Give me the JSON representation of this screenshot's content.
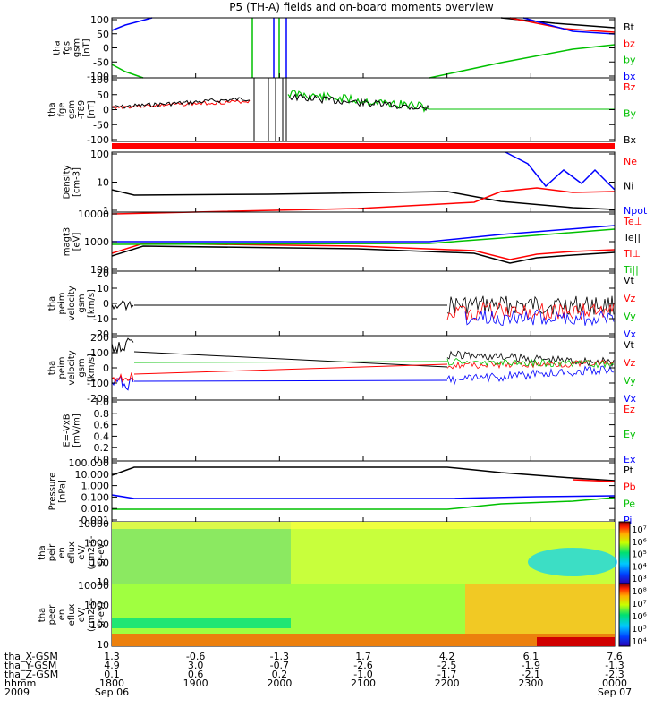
{
  "title": "P5 (TH-A) fields and on-board moments overview",
  "colorbar_labels_a": [
    "10⁷",
    "10⁶",
    "10⁵",
    "10⁴",
    "10³"
  ],
  "colorbar_labels_b": [
    "10⁸",
    "10⁷",
    "10⁶",
    "10⁵",
    "10⁴"
  ],
  "chart_data": {
    "type": "line",
    "time_ticks": [
      "1800",
      "1900",
      "2000",
      "2100",
      "2200",
      "2300",
      "0000"
    ],
    "ephemeris": [
      {
        "label": "tha_X-GSM",
        "values": [
          "1.3",
          "-0.6",
          "-1.3",
          "1.7",
          "4.2",
          "6.1",
          "7.6"
        ]
      },
      {
        "label": "tha_Y-GSM",
        "values": [
          "4.9",
          "3.0",
          "-0.7",
          "-2.6",
          "-2.5",
          "-1.9",
          "-1.3"
        ]
      },
      {
        "label": "tha_Z-GSM",
        "values": [
          "0.1",
          "0.6",
          "0.2",
          "-1.0",
          "-1.7",
          "-2.1",
          "-2.3"
        ]
      },
      {
        "label": "hhmm",
        "values": [
          "1800",
          "1900",
          "2000",
          "2100",
          "2200",
          "2300",
          "0000"
        ]
      }
    ],
    "year": "2009",
    "date_start": "Sep 06",
    "date_end": "Sep 07",
    "panels": [
      {
        "id": "fgs",
        "ylabel": [
          "tha",
          "fgs",
          "gsm",
          "[nT]"
        ],
        "yticks": [
          "100",
          "50",
          "0",
          "-50",
          "-100"
        ],
        "legend": [
          {
            "text": "Bt",
            "color": "#000000"
          },
          {
            "text": "bz",
            "color": "#ff0000"
          },
          {
            "text": "by",
            "color": "#00c000"
          },
          {
            "text": "bx",
            "color": "#0000ff"
          }
        ]
      },
      {
        "id": "fge",
        "ylabel": [
          "tha",
          "fge",
          "gsm",
          "-T89",
          "[nT]"
        ],
        "yticks": [
          "100",
          "50",
          "0",
          "-50",
          "-100"
        ],
        "legend": [
          {
            "text": "Bz",
            "color": "#ff0000"
          },
          {
            "text": "By",
            "color": "#00c000"
          },
          {
            "text": "Bx",
            "color": "#000000"
          }
        ]
      },
      {
        "id": "density",
        "ylabel": [
          "Density",
          "[cm-3]"
        ],
        "yticks": [
          "100",
          "10",
          "1"
        ],
        "legend": [
          {
            "text": "Ne",
            "color": "#ff0000"
          },
          {
            "text": "Ni",
            "color": "#000000"
          },
          {
            "text": "Npot",
            "color": "#0000ff"
          }
        ]
      },
      {
        "id": "temp",
        "ylabel": [
          "magt3",
          "[eV]"
        ],
        "yticks": [
          "10000",
          "1000",
          "100"
        ],
        "legend": [
          {
            "text": "Te⊥",
            "color": "#ff0000"
          },
          {
            "text": "Te||",
            "color": "#000000"
          },
          {
            "text": "Ti⊥",
            "color": "#ff0000"
          },
          {
            "text": "Ti||",
            "color": "#00c000"
          }
        ]
      },
      {
        "id": "peim_gsm",
        "ylabel": [
          "tha",
          "peim",
          "velocity",
          "gsm",
          "[km/s]"
        ],
        "yticks": [
          "20",
          "10",
          "0",
          "-10",
          "-20"
        ],
        "legend": [
          {
            "text": "Vt",
            "color": "#000000"
          },
          {
            "text": "Vz",
            "color": "#ff0000"
          },
          {
            "text": "Vy",
            "color": "#00c000"
          },
          {
            "text": "Vx",
            "color": "#0000ff"
          }
        ]
      },
      {
        "id": "peim_gsm2",
        "ylabel": [
          "tha",
          "peim",
          "velocity",
          "gsm",
          "[km/s]"
        ],
        "yticks": [
          "200",
          "100",
          "0",
          "-100",
          "-200"
        ],
        "legend": [
          {
            "text": "Vt",
            "color": "#000000"
          },
          {
            "text": "Vz",
            "color": "#ff0000"
          },
          {
            "text": "Vy",
            "color": "#00c000"
          },
          {
            "text": "Vx",
            "color": "#0000ff"
          }
        ]
      },
      {
        "id": "efield",
        "ylabel": [
          "E=-VxB",
          "[mV/m]"
        ],
        "yticks": [
          "1.0",
          "0.8",
          "0.6",
          "0.4",
          "0.2",
          "0.0"
        ],
        "legend": [
          {
            "text": "Ez",
            "color": "#ff0000"
          },
          {
            "text": "Ey",
            "color": "#00c000"
          },
          {
            "text": "Ex",
            "color": "#0000ff"
          }
        ]
      },
      {
        "id": "pressure",
        "ylabel": [
          "Pressure",
          "[nPa]"
        ],
        "yticks": [
          "100.000",
          "10.000",
          "1.000",
          "0.100",
          "0.010",
          "0.001"
        ],
        "legend": [
          {
            "text": "Pt",
            "color": "#000000"
          },
          {
            "text": "Pb",
            "color": "#ff0000"
          },
          {
            "text": "Pe",
            "color": "#00c000"
          },
          {
            "text": "Pi",
            "color": "#0000ff"
          }
        ]
      },
      {
        "id": "peir",
        "ylabel": [
          "tha",
          "peir",
          "en",
          "eflux",
          "eV/",
          "(cm2-s-",
          "sr-eV)"
        ],
        "yticks": [
          "10000",
          "1000",
          "100",
          "10"
        ],
        "legend": []
      },
      {
        "id": "peer",
        "ylabel": [
          "tha",
          "peer",
          "en",
          "eflux",
          "eV/",
          "(cm2-s-",
          "sr-eV)"
        ],
        "yticks": [
          "10000",
          "1000",
          "100",
          "10"
        ],
        "legend": []
      }
    ]
  }
}
